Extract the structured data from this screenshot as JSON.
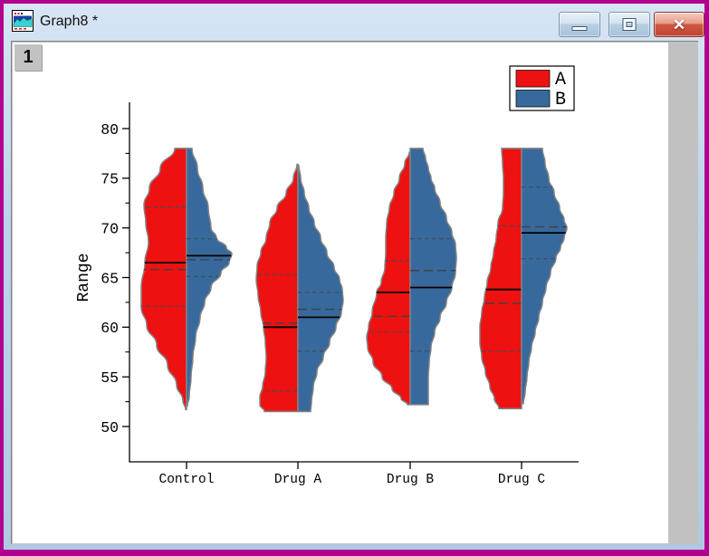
{
  "window": {
    "title": "Graph8 *",
    "layer_badge": "1",
    "controls": {
      "minimize": "minimize",
      "maximize": "maximize",
      "close": "close",
      "close_glyph": "✕"
    }
  },
  "colors": {
    "window_border": "#b20090",
    "titlebar_blue": "#bdd3ea",
    "workspace_gray": "#c1c1c1",
    "page_bg": "#ffffff",
    "series_a": "#ee1111",
    "series_b": "#38699d",
    "violin_outline": "#828282",
    "median_line": "#000000",
    "mean_line": "#404040",
    "quartile_line": "#3c4e5c"
  },
  "legend": {
    "items": [
      {
        "label": "A",
        "color": "#ee1111"
      },
      {
        "label": "B",
        "color": "#38699d"
      }
    ]
  },
  "chart_data": {
    "type": "violin",
    "split": true,
    "title": "",
    "xlabel": "",
    "ylabel": "Range",
    "ylim": [
      46.5,
      82.5
    ],
    "yticks": [
      50,
      55,
      60,
      65,
      70,
      75,
      80
    ],
    "yminor_ticks": [
      52.5,
      57.5,
      62.5,
      67.5,
      72.5,
      77.5
    ],
    "grid": false,
    "legend_position": "top-right",
    "categories": [
      "Control",
      "Drug A",
      "Drug B",
      "Drug C"
    ],
    "series": [
      {
        "name": "A",
        "side": "left",
        "color": "#ee1111",
        "stats": [
          {
            "category": "Control",
            "median": 66.5,
            "mean": 65.8,
            "q3": 72.1,
            "q1": 62.1,
            "max": 78.0,
            "min": 51.7,
            "profile": [
              [
                78,
                13
              ],
              [
                76,
                29
              ],
              [
                74,
                41
              ],
              [
                72.3,
                47
              ],
              [
                70.5,
                45
              ],
              [
                68.6,
                42
              ],
              [
                66.5,
                46
              ],
              [
                64,
                50
              ],
              [
                62,
                50
              ],
              [
                60.2,
                44
              ],
              [
                58.2,
                33
              ],
              [
                56.2,
                21
              ],
              [
                54.2,
                11
              ],
              [
                52.6,
                4
              ],
              [
                51.7,
                1
              ]
            ]
          },
          {
            "category": "Drug A",
            "median": 60.0,
            "mean": 60.4,
            "q3": 65.3,
            "q1": 53.6,
            "max": 76.4,
            "min": 51.5,
            "profile": [
              [
                76.4,
                1
              ],
              [
                75,
                5
              ],
              [
                73.5,
                13
              ],
              [
                72,
                23
              ],
              [
                70.5,
                31
              ],
              [
                69,
                35
              ],
              [
                67.5,
                41
              ],
              [
                66.2,
                45
              ],
              [
                64.8,
                46
              ],
              [
                63.2,
                44
              ],
              [
                61.5,
                41
              ],
              [
                60,
                38
              ],
              [
                58.5,
                36
              ],
              [
                57,
                35
              ],
              [
                55.5,
                36
              ],
              [
                54,
                39
              ],
              [
                53,
                42
              ],
              [
                52.2,
                42
              ],
              [
                51.5,
                37
              ]
            ]
          },
          {
            "category": "Drug B",
            "median": 63.5,
            "mean": 61.1,
            "q3": 66.7,
            "q1": 59.5,
            "max": 77.6,
            "min": 52.2,
            "profile": [
              [
                77.6,
                1
              ],
              [
                76.5,
                6
              ],
              [
                75,
                12
              ],
              [
                73.5,
                18
              ],
              [
                72,
                23
              ],
              [
                70.5,
                26
              ],
              [
                69,
                27
              ],
              [
                67.5,
                27
              ],
              [
                66,
                28
              ],
              [
                64.5,
                32
              ],
              [
                63.5,
                37
              ],
              [
                61.5,
                42
              ],
              [
                60,
                46
              ],
              [
                59,
                48
              ],
              [
                58,
                47
              ],
              [
                56.5,
                41
              ],
              [
                55,
                31
              ],
              [
                53.8,
                20
              ],
              [
                52.8,
                10
              ],
              [
                52.2,
                3
              ]
            ]
          },
          {
            "category": "Drug C",
            "median": 63.8,
            "mean": 62.4,
            "q3": 70.2,
            "q1": 57.6,
            "max": 78.0,
            "min": 51.8,
            "profile": [
              [
                78,
                22
              ],
              [
                76.5,
                21
              ],
              [
                75,
                20
              ],
              [
                73.5,
                20
              ],
              [
                72,
                21
              ],
              [
                70.5,
                26
              ],
              [
                69,
                28
              ],
              [
                67.5,
                31
              ],
              [
                66,
                34
              ],
              [
                64.5,
                38
              ],
              [
                63,
                41
              ],
              [
                61.5,
                44
              ],
              [
                60,
                46
              ],
              [
                58.5,
                46
              ],
              [
                57,
                44
              ],
              [
                55.5,
                40
              ],
              [
                54,
                35
              ],
              [
                52.8,
                30
              ],
              [
                51.8,
                25
              ]
            ]
          }
        ]
      },
      {
        "name": "B",
        "side": "right",
        "color": "#38699d",
        "stats": [
          {
            "category": "Control",
            "median": 67.2,
            "mean": 66.8,
            "q3": 68.9,
            "q1": 65.1,
            "max": 78.0,
            "min": 52.1,
            "profile": [
              [
                78,
                6
              ],
              [
                76,
                12
              ],
              [
                74,
                18
              ],
              [
                72,
                24
              ],
              [
                70,
                27
              ],
              [
                69,
                33
              ],
              [
                68,
                44
              ],
              [
                67.4,
                50
              ],
              [
                66.5,
                47
              ],
              [
                65.5,
                38
              ],
              [
                64,
                27
              ],
              [
                62.5,
                20
              ],
              [
                61,
                15
              ],
              [
                59,
                10
              ],
              [
                57,
                7
              ],
              [
                55,
                5
              ],
              [
                53,
                3
              ],
              [
                52.1,
                1
              ]
            ]
          },
          {
            "category": "Drug A",
            "median": 61.0,
            "mean": 61.8,
            "q3": 63.5,
            "q1": 57.6,
            "max": 76.3,
            "min": 51.5,
            "profile": [
              [
                76.3,
                1
              ],
              [
                75,
                3
              ],
              [
                73.5,
                7
              ],
              [
                72,
                12
              ],
              [
                70.5,
                18
              ],
              [
                69,
                25
              ],
              [
                67.5,
                32
              ],
              [
                66,
                40
              ],
              [
                64.8,
                46
              ],
              [
                63.8,
                49
              ],
              [
                62.7,
                50
              ],
              [
                61.5,
                48
              ],
              [
                60,
                42
              ],
              [
                58.5,
                35
              ],
              [
                57,
                28
              ],
              [
                55.5,
                21
              ],
              [
                54,
                17
              ],
              [
                52.5,
                15
              ],
              [
                51.5,
                14
              ]
            ]
          },
          {
            "category": "Drug B",
            "median": 64.0,
            "mean": 65.7,
            "q3": 68.9,
            "q1": 57.6,
            "max": 78.0,
            "min": 52.2,
            "profile": [
              [
                78,
                14
              ],
              [
                77,
                17
              ],
              [
                76,
                20
              ],
              [
                75,
                23
              ],
              [
                74,
                27
              ],
              [
                72.5,
                33
              ],
              [
                71,
                40
              ],
              [
                69.5,
                46
              ],
              [
                68.3,
                50
              ],
              [
                67,
                51
              ],
              [
                65.5,
                50
              ],
              [
                64,
                46
              ],
              [
                62.5,
                40
              ],
              [
                61,
                33
              ],
              [
                59.5,
                27
              ],
              [
                58,
                23
              ],
              [
                56.5,
                21
              ],
              [
                55,
                20
              ],
              [
                53.5,
                20
              ],
              [
                52.2,
                20
              ]
            ]
          },
          {
            "category": "Drug C",
            "median": 69.5,
            "mean": 70.1,
            "q3": 74.1,
            "q1": 66.9,
            "max": 78.0,
            "min": 52.3,
            "profile": [
              [
                78,
                23
              ],
              [
                76.5,
                26
              ],
              [
                75,
                30
              ],
              [
                73.5,
                36
              ],
              [
                72,
                42
              ],
              [
                70.8,
                47
              ],
              [
                70,
                50
              ],
              [
                69,
                47
              ],
              [
                68,
                43
              ],
              [
                67,
                38
              ],
              [
                65.5,
                32
              ],
              [
                64,
                27
              ],
              [
                62.5,
                23
              ],
              [
                61,
                19
              ],
              [
                59.5,
                15
              ],
              [
                58,
                11
              ],
              [
                56.5,
                8
              ],
              [
                55,
                6
              ],
              [
                53.5,
                4
              ],
              [
                52.3,
                2
              ]
            ]
          }
        ]
      }
    ]
  }
}
